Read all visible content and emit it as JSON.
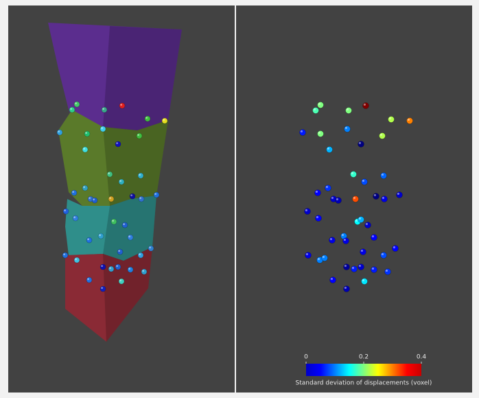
{
  "colorbar": {
    "label": "Standard deviation of displacements (voxel)",
    "range": [
      0,
      0.4
    ],
    "ticks": [
      0,
      0.2,
      0.4
    ]
  },
  "points": [
    0.2,
    0.18,
    0.2,
    0.4,
    0.22,
    0.3,
    0.06,
    0.2,
    0.1,
    0.22,
    0.12,
    0,
    0.17,
    0.09,
    0.08,
    0.07,
    0.05,
    0.03,
    0.02,
    0.32,
    0,
    0.04,
    0.03,
    0.03,
    0.05,
    0.15,
    0.12,
    0.03,
    0.1,
    0.04,
    0.04,
    0.05,
    0.05,
    0.04,
    0.08,
    0.04,
    0.1,
    0.1,
    0.01,
    0.06,
    0.03,
    0.06,
    0.07,
    0.05,
    0.14,
    0.02
  ]
}
